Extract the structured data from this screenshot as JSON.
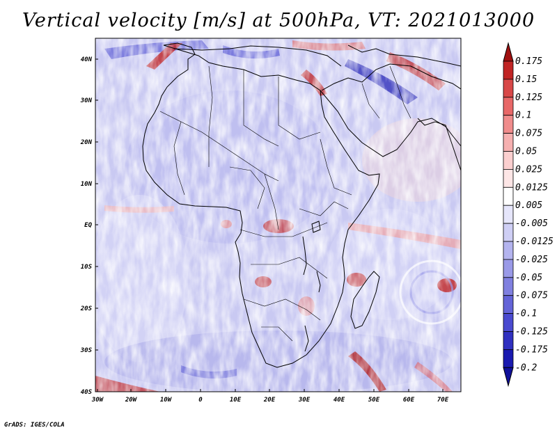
{
  "title": "Vertical velocity [m/s] at 500hPa, VT: 2021013000",
  "credit": "GrADS: IGES/COLA",
  "lat_labels": [
    "40N",
    "30N",
    "20N",
    "10N",
    "EQ",
    "10S",
    "20S",
    "30S",
    "40S"
  ],
  "lon_labels": [
    "30W",
    "20W",
    "10W",
    "0",
    "10E",
    "20E",
    "30E",
    "40E",
    "50E",
    "60E",
    "70E"
  ],
  "colorbar": {
    "colors": [
      "#a01010",
      "#c02424",
      "#d84848",
      "#e86868",
      "#f08c8c",
      "#f6b0b0",
      "#fbcfcf",
      "#fde6e6",
      "#ffffff",
      "#e6e6fb",
      "#cfcff5",
      "#b4b4ef",
      "#9a9ae8",
      "#8080e0",
      "#6464d8",
      "#4a4ad0",
      "#3030c0",
      "#1a1ab0",
      "#10109a"
    ],
    "labels": [
      "0.175",
      "0.15",
      "0.125",
      "0.1",
      "0.075",
      "0.05",
      "0.025",
      "0.0125",
      "0.005",
      "-0.005",
      "-0.0125",
      "-0.025",
      "-0.05",
      "-0.075",
      "-0.1",
      "-0.125",
      "-0.175",
      "-0.2"
    ]
  }
}
